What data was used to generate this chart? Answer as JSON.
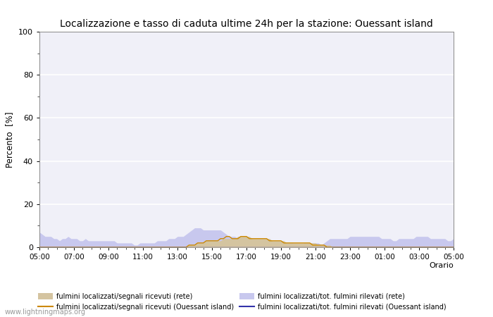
{
  "title": "Localizzazione e tasso di caduta ultime 24h per la stazione: Ouessant island",
  "ylabel": "Percento  [%]",
  "xlabel": "Orario",
  "ylim": [
    0,
    100
  ],
  "yticks": [
    0,
    20,
    40,
    60,
    80,
    100
  ],
  "yticks_minor": [
    10,
    30,
    50,
    70,
    90
  ],
  "xtick_labels": [
    "05:00",
    "07:00",
    "09:00",
    "11:00",
    "13:00",
    "15:00",
    "17:00",
    "19:00",
    "21:00",
    "23:00",
    "01:00",
    "03:00",
    "05:00"
  ],
  "background_color": "#ffffff",
  "plot_bg_color": "#f0f0f8",
  "grid_color": "#ffffff",
  "title_fontsize": 10,
  "watermark": "www.lightningmaps.org",
  "fill_rete_color": "#d4c4a0",
  "fill_island_color": "#c8c8ee",
  "line_rete_color": "#cc8800",
  "line_island_color": "#3333aa",
  "n_points": 145,
  "island_fill": [
    7,
    6,
    5,
    5,
    5,
    4,
    4,
    3,
    4,
    4,
    5,
    4,
    4,
    4,
    3,
    3,
    4,
    3,
    3,
    3,
    3,
    3,
    3,
    3,
    3,
    3,
    3,
    2,
    2,
    2,
    2,
    2,
    2,
    1,
    1,
    2,
    2,
    2,
    2,
    2,
    2,
    3,
    3,
    3,
    3,
    4,
    4,
    4,
    5,
    5,
    5,
    6,
    7,
    8,
    9,
    9,
    9,
    8,
    8,
    8,
    8,
    8,
    8,
    8,
    7,
    6,
    5,
    5,
    5,
    4,
    4,
    3,
    3,
    3,
    3,
    2,
    2,
    2,
    2,
    2,
    1,
    1,
    1,
    1,
    2,
    2,
    2,
    2,
    2,
    1,
    1,
    1,
    2,
    2,
    2,
    2,
    2,
    2,
    1,
    2,
    3,
    4,
    4,
    4,
    4,
    4,
    4,
    4,
    5,
    5,
    5,
    5,
    5,
    5,
    5,
    5,
    5,
    5,
    5,
    4,
    4,
    4,
    4,
    3,
    3,
    4,
    4,
    4,
    4,
    4,
    4,
    5,
    5,
    5,
    5,
    5,
    4,
    4,
    4,
    4,
    4,
    4,
    3,
    3,
    4
  ],
  "rete_fill": [
    0,
    0,
    0,
    0,
    0,
    0,
    0,
    0,
    0,
    0,
    0,
    0,
    0,
    0,
    0,
    0,
    0,
    0,
    0,
    0,
    0,
    0,
    0,
    0,
    0,
    0,
    0,
    0,
    0,
    0,
    0,
    0,
    0,
    0,
    0,
    0,
    0,
    0,
    0,
    0,
    0,
    0,
    0,
    0,
    0,
    0,
    0,
    0,
    0,
    0,
    0,
    0,
    1,
    1,
    1,
    2,
    2,
    2,
    3,
    3,
    3,
    3,
    3,
    3,
    4,
    4,
    4,
    4,
    4,
    5,
    5,
    5,
    5,
    5,
    4,
    4,
    4,
    4,
    4,
    4,
    4,
    3,
    3,
    3,
    3,
    3,
    2,
    2,
    2,
    2,
    2,
    2,
    2,
    2,
    2,
    2,
    2,
    1,
    1,
    1,
    1,
    1,
    0,
    0,
    0,
    0,
    0,
    0,
    0,
    0,
    0,
    0,
    0,
    0,
    0,
    0,
    0,
    0,
    0,
    0,
    0,
    0,
    0,
    0,
    0,
    0,
    0,
    0,
    0,
    0,
    0,
    0,
    0,
    0,
    0,
    0,
    0,
    0,
    0,
    0,
    0,
    0,
    0,
    0,
    0
  ],
  "rete_line": [
    0,
    0,
    0,
    0,
    0,
    0,
    0,
    0,
    0,
    0,
    0,
    0,
    0,
    0,
    0,
    0,
    0,
    0,
    0,
    0,
    0,
    0,
    0,
    0,
    0,
    0,
    0,
    0,
    0,
    0,
    0,
    0,
    0,
    0,
    0,
    0,
    0,
    0,
    0,
    0,
    0,
    0,
    0,
    0,
    0,
    0,
    0,
    0,
    0,
    0,
    0,
    0,
    1,
    1,
    1,
    2,
    2,
    2,
    3,
    3,
    3,
    3,
    3,
    4,
    4,
    5,
    5,
    4,
    4,
    4,
    5,
    5,
    5,
    4,
    4,
    4,
    4,
    4,
    4,
    4,
    3,
    3,
    3,
    3,
    3,
    2,
    2,
    2,
    2,
    2,
    2,
    2,
    2,
    2,
    2,
    1,
    1,
    1,
    1,
    1,
    0,
    0,
    0,
    0,
    0,
    0,
    0,
    0,
    0,
    0,
    0,
    0,
    0,
    0,
    0,
    0,
    0,
    0,
    0,
    0,
    0,
    0,
    0,
    0,
    0,
    0,
    0,
    0,
    0,
    0,
    0,
    0,
    0,
    0,
    0,
    0,
    0,
    0,
    0,
    0,
    0,
    0,
    0,
    0,
    0
  ],
  "island_line": [
    0,
    0,
    0,
    0,
    0,
    0,
    0,
    0,
    0,
    0,
    0,
    0,
    0,
    0,
    0,
    0,
    0,
    0,
    0,
    0,
    0,
    0,
    0,
    0,
    0,
    0,
    0,
    0,
    0,
    0,
    0,
    0,
    0,
    0,
    0,
    0,
    0,
    0,
    0,
    0,
    0,
    0,
    0,
    0,
    0,
    0,
    0,
    0,
    0,
    0,
    0,
    0,
    0,
    0,
    0,
    0,
    0,
    0,
    0,
    0,
    0,
    0,
    0,
    0,
    0,
    0,
    0,
    0,
    0,
    0,
    0,
    0,
    0,
    0,
    0,
    0,
    0,
    0,
    0,
    0,
    0,
    0,
    0,
    0,
    0,
    0,
    0,
    0,
    0,
    0,
    0,
    0,
    0,
    0,
    0,
    0,
    0,
    0,
    0,
    0,
    0,
    0,
    0,
    0,
    0,
    0,
    0,
    0,
    0,
    0,
    0,
    0,
    0,
    0,
    0,
    0,
    0,
    0,
    0,
    0,
    0,
    0,
    0,
    0,
    0,
    0,
    0,
    0,
    0,
    0,
    0,
    0,
    0,
    0,
    0,
    0,
    0,
    0,
    0,
    0,
    0,
    0,
    0,
    0,
    0
  ]
}
